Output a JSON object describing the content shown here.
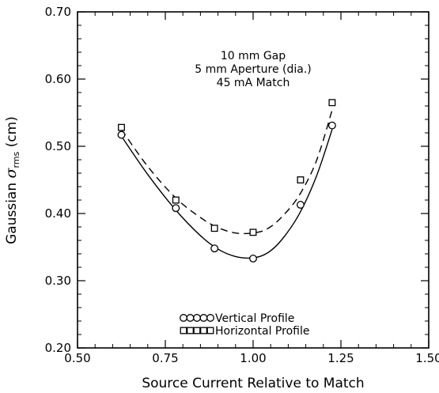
{
  "chart_data": {
    "type": "scatter",
    "xlabel": "Source Current Relative to Match",
    "ylabel_prefix": "Gaussian ",
    "ylabel_symbol": "σ",
    "ylabel_subscript": "rms",
    "ylabel_suffix": " (cm)",
    "xlim": [
      0.5,
      1.5
    ],
    "ylim": [
      0.2,
      0.7
    ],
    "x_ticks": [
      0.5,
      0.75,
      1.0,
      1.25,
      1.5
    ],
    "x_tick_labels": [
      "0.50",
      "0.75",
      "1.00",
      "1.25",
      "1.50"
    ],
    "y_ticks": [
      0.2,
      0.3,
      0.4,
      0.5,
      0.6,
      0.7
    ],
    "y_tick_labels": [
      "0.20",
      "0.30",
      "0.40",
      "0.50",
      "0.60",
      "0.70"
    ],
    "grid": false,
    "annotations": [
      "10 mm Gap",
      "5 mm Aperture (dia.)",
      "45 mA Match"
    ],
    "legend_position": "bottom-center",
    "series": [
      {
        "name": "Vertical Profile",
        "marker": "circle",
        "line": "solid",
        "points": [
          [
            0.625,
            0.517
          ],
          [
            0.78,
            0.408
          ],
          [
            0.89,
            0.348
          ],
          [
            1.0,
            0.333
          ],
          [
            1.135,
            0.413
          ],
          [
            1.225,
            0.531
          ]
        ],
        "fit": [
          [
            0.625,
            0.515
          ],
          [
            0.7,
            0.458
          ],
          [
            0.78,
            0.405
          ],
          [
            0.85,
            0.367
          ],
          [
            0.9,
            0.347
          ],
          [
            0.95,
            0.336
          ],
          [
            1.0,
            0.334
          ],
          [
            1.04,
            0.341
          ],
          [
            1.08,
            0.36
          ],
          [
            1.13,
            0.398
          ],
          [
            1.18,
            0.455
          ],
          [
            1.225,
            0.525
          ]
        ]
      },
      {
        "name": "Horizontal Profile",
        "marker": "square",
        "line": "dashed",
        "points": [
          [
            0.625,
            0.528
          ],
          [
            0.78,
            0.42
          ],
          [
            0.89,
            0.378
          ],
          [
            1.0,
            0.372
          ],
          [
            1.135,
            0.45
          ],
          [
            1.225,
            0.565
          ]
        ],
        "fit": [
          [
            0.625,
            0.525
          ],
          [
            0.7,
            0.47
          ],
          [
            0.78,
            0.423
          ],
          [
            0.85,
            0.394
          ],
          [
            0.9,
            0.379
          ],
          [
            0.95,
            0.371
          ],
          [
            1.0,
            0.371
          ],
          [
            1.04,
            0.377
          ],
          [
            1.08,
            0.394
          ],
          [
            1.13,
            0.426
          ],
          [
            1.18,
            0.478
          ],
          [
            1.225,
            0.554
          ]
        ]
      }
    ]
  }
}
